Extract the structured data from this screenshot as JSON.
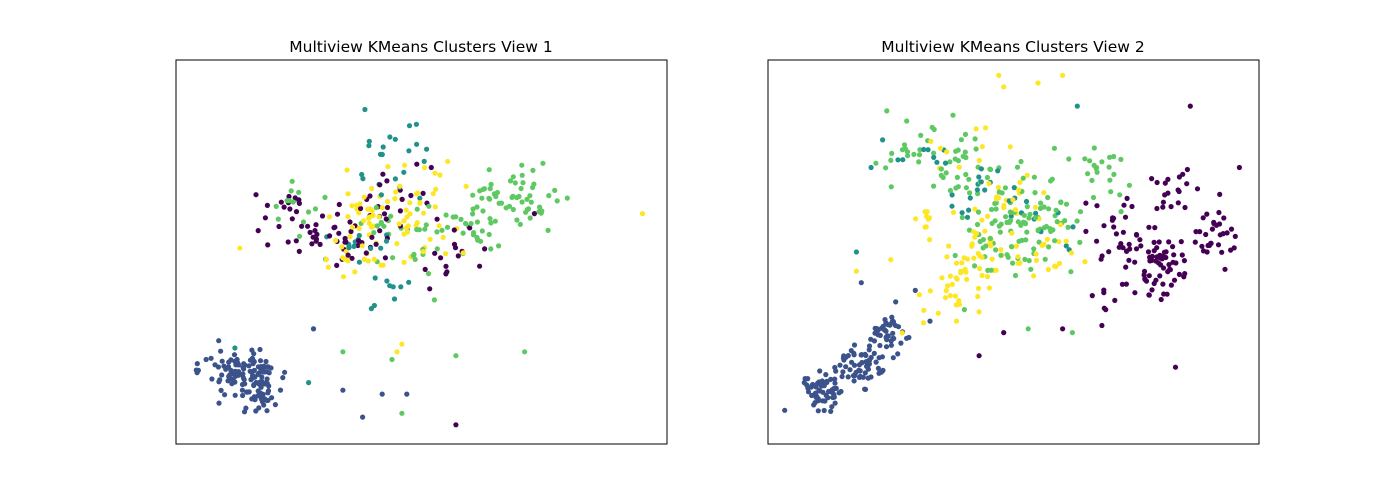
{
  "figure": {
    "background": "#ffffff"
  },
  "chart_data": [
    {
      "type": "scatter",
      "title": "Multiview KMeans Clusters View 1",
      "xlabel": "",
      "ylabel": "",
      "xticks": [],
      "yticks": [],
      "grid": false,
      "legend": "none",
      "xlim": [
        0,
        100
      ],
      "ylim": [
        0,
        100
      ],
      "marker": "circle",
      "series": [
        {
          "color": "#440154",
          "cluster_centers": [
            [
              24,
              60
            ],
            [
              35,
              54
            ],
            [
              45,
              62
            ],
            [
              57,
              48
            ]
          ],
          "cluster_spread": [
            [
              8,
              9
            ],
            [
              7,
              8
            ],
            [
              8,
              9
            ],
            [
              6,
              7
            ]
          ],
          "points_per_cluster": [
            28,
            28,
            25,
            14
          ],
          "outliers": [
            [
              73,
              60
            ],
            [
              57,
              5
            ],
            [
              52,
              72
            ]
          ]
        },
        {
          "color": "#3b528b",
          "cluster_centers": [
            [
              12,
              19
            ],
            [
              17,
              15
            ]
          ],
          "cluster_spread": [
            [
              5,
              5
            ],
            [
              4,
              6
            ]
          ],
          "points_per_cluster": [
            70,
            70
          ],
          "outliers": [
            [
              38,
              7
            ],
            [
              47,
              13
            ],
            [
              28,
              30
            ],
            [
              34,
              14
            ],
            [
              42,
              13
            ]
          ]
        },
        {
          "color": "#21918c",
          "cluster_centers": [
            [
              45,
              73
            ],
            [
              38,
              52
            ],
            [
              42,
              40
            ]
          ],
          "cluster_spread": [
            [
              9,
              9
            ],
            [
              6,
              8
            ],
            [
              6,
              6
            ]
          ],
          "points_per_cluster": [
            22,
            14,
            8
          ],
          "outliers": [
            [
              28,
              30
            ],
            [
              12,
              25
            ],
            [
              27,
              16
            ]
          ]
        },
        {
          "color": "#5ec962",
          "cluster_centers": [
            [
              70,
              65
            ],
            [
              46,
              54
            ],
            [
              60,
              58
            ],
            [
              26,
              62
            ]
          ],
          "cluster_spread": [
            [
              9,
              7
            ],
            [
              9,
              10
            ],
            [
              7,
              9
            ],
            [
              5,
              8
            ]
          ],
          "points_per_cluster": [
            50,
            30,
            30,
            14
          ],
          "outliers": [
            [
              71,
              24
            ],
            [
              57,
              23
            ],
            [
              46,
              8
            ],
            [
              34,
              24
            ],
            [
              44,
              22
            ]
          ]
        },
        {
          "color": "#fde725",
          "cluster_centers": [
            [
              40,
              60
            ],
            [
              50,
              64
            ],
            [
              36,
              48
            ],
            [
              49,
              52
            ]
          ],
          "cluster_spread": [
            [
              8,
              8
            ],
            [
              8,
              9
            ],
            [
              6,
              7
            ],
            [
              8,
              8
            ]
          ],
          "points_per_cluster": [
            30,
            28,
            16,
            16
          ],
          "outliers": [
            [
              95,
              60
            ],
            [
              46,
              26
            ],
            [
              13,
              51
            ],
            [
              45,
              24
            ]
          ]
        }
      ]
    },
    {
      "type": "scatter",
      "title": "Multiview KMeans Clusters View 2",
      "xlabel": "",
      "ylabel": "",
      "xticks": [],
      "yticks": [],
      "grid": false,
      "legend": "none",
      "xlim": [
        0,
        100
      ],
      "ylim": [
        0,
        100
      ],
      "marker": "circle",
      "series": [
        {
          "color": "#440154",
          "cluster_centers": [
            [
              80,
              47
            ],
            [
              71,
              54
            ],
            [
              91,
              55
            ],
            [
              82,
              65
            ],
            [
              72,
              38
            ]
          ],
          "cluster_spread": [
            [
              5,
              7
            ],
            [
              5,
              8
            ],
            [
              4,
              6
            ],
            [
              5,
              7
            ],
            [
              5,
              6
            ]
          ],
          "points_per_cluster": [
            60,
            30,
            30,
            20,
            10
          ],
          "outliers": [
            [
              43,
              23
            ],
            [
              60,
              30
            ],
            [
              96,
              72
            ],
            [
              92,
              65
            ],
            [
              83,
              20
            ],
            [
              86,
              88
            ],
            [
              48,
              29
            ]
          ]
        },
        {
          "color": "#3b528b",
          "cluster_centers": [
            [
              11,
              14
            ],
            [
              19,
              21
            ],
            [
              24,
              29
            ]
          ],
          "cluster_spread": [
            [
              4,
              5
            ],
            [
              4,
              5
            ],
            [
              4,
              4
            ]
          ],
          "points_per_cluster": [
            60,
            60,
            40
          ],
          "outliers": [
            [
              33,
              32
            ],
            [
              26,
              37
            ],
            [
              19,
              42
            ],
            [
              30,
              40
            ]
          ]
        },
        {
          "color": "#21918c",
          "cluster_centers": [
            [
              43,
              66
            ],
            [
              54,
              56
            ],
            [
              36,
              76
            ]
          ],
          "cluster_spread": [
            [
              8,
              8
            ],
            [
              8,
              7
            ],
            [
              9,
              6
            ]
          ],
          "points_per_cluster": [
            18,
            10,
            8
          ],
          "outliers": [
            [
              18,
              50
            ],
            [
              63,
              88
            ],
            [
              21,
              72
            ]
          ]
        },
        {
          "color": "#5ec962",
          "cluster_centers": [
            [
              50,
              55
            ],
            [
              57,
              61
            ],
            [
              30,
              76
            ],
            [
              41,
              72
            ],
            [
              68,
              70
            ]
          ],
          "cluster_spread": [
            [
              8,
              9
            ],
            [
              8,
              10
            ],
            [
              10,
              8
            ],
            [
              8,
              9
            ],
            [
              7,
              7
            ]
          ],
          "points_per_cluster": [
            60,
            40,
            30,
            30,
            20
          ],
          "outliers": [
            [
              62,
              29
            ],
            [
              53,
              30
            ],
            [
              40,
              35
            ]
          ]
        },
        {
          "color": "#fde725",
          "cluster_centers": [
            [
              42,
              46
            ],
            [
              50,
              59
            ],
            [
              35,
              38
            ],
            [
              59,
              50
            ],
            [
              41,
              78
            ],
            [
              32,
              56
            ]
          ],
          "cluster_spread": [
            [
              7,
              9
            ],
            [
              9,
              10
            ],
            [
              6,
              6
            ],
            [
              7,
              8
            ],
            [
              8,
              10
            ],
            [
              6,
              8
            ]
          ],
          "points_per_cluster": [
            40,
            30,
            16,
            16,
            10,
            10
          ],
          "outliers": [
            [
              18,
              45
            ],
            [
              25,
              48
            ],
            [
              48,
              93
            ],
            [
              55,
              94
            ],
            [
              47,
              96
            ],
            [
              60,
              96
            ]
          ]
        }
      ]
    }
  ]
}
